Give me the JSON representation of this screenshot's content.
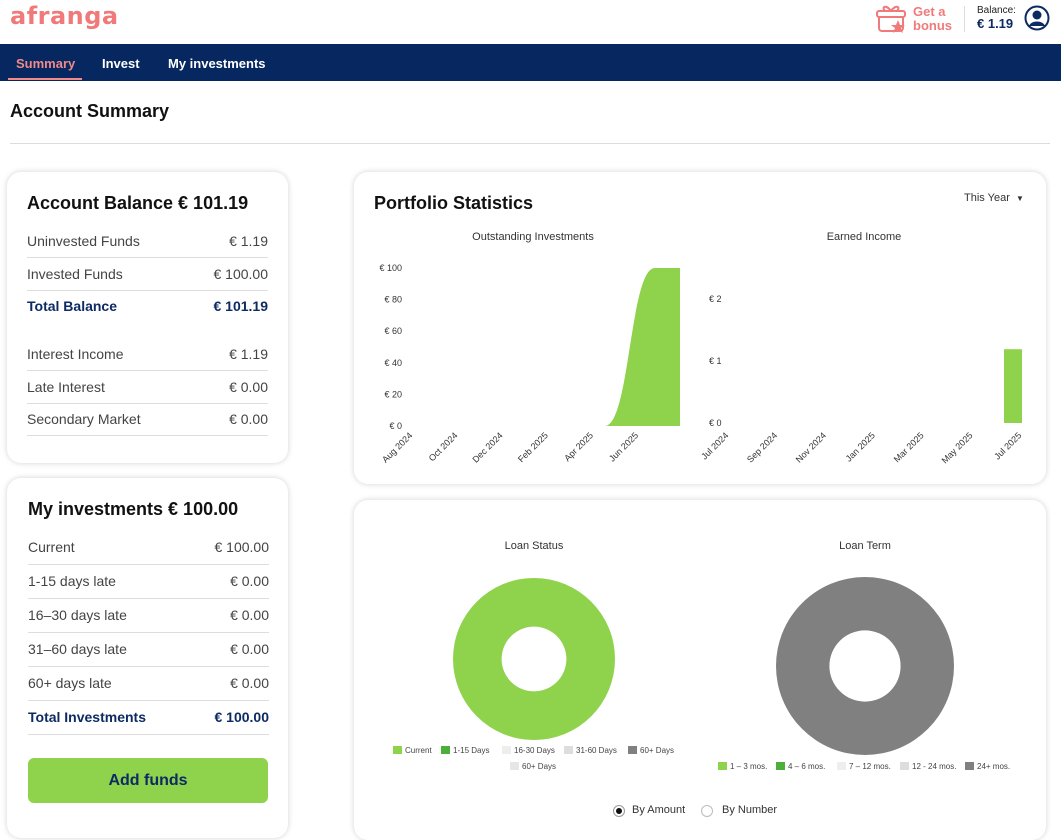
{
  "header": {
    "logo": "afranga",
    "bonus_line1": "Get a",
    "bonus_line2": "bonus",
    "balance_label": "Balance:",
    "balance_value": "€ 1.19"
  },
  "nav": {
    "tabs": [
      {
        "label": "Summary",
        "active": true
      },
      {
        "label": "Invest",
        "active": false
      },
      {
        "label": "My investments",
        "active": false
      }
    ]
  },
  "page": {
    "title": "Account Summary"
  },
  "account_balance": {
    "title": "Account Balance € 101.19",
    "rows": [
      {
        "label": "Uninvested Funds",
        "value": "€ 1.19"
      },
      {
        "label": "Invested Funds",
        "value": "€ 100.00"
      },
      {
        "label": "Total Balance",
        "value": "€ 101.19"
      },
      {
        "label": "Interest Income",
        "value": "€ 1.19"
      },
      {
        "label": "Late Interest",
        "value": "€ 0.00"
      },
      {
        "label": "Secondary Market",
        "value": "€ 0.00"
      }
    ]
  },
  "my_investments": {
    "title": "My investments € 100.00",
    "rows": [
      {
        "label": "Current",
        "value": "€ 100.00"
      },
      {
        "label": "1-15 days late",
        "value": "€ 0.00"
      },
      {
        "label": "16–30 days late",
        "value": "€ 0.00"
      },
      {
        "label": "31–60 days late",
        "value": "€ 0.00"
      },
      {
        "label": "60+ days late",
        "value": "€ 0.00"
      },
      {
        "label": "Total Investments",
        "value": "€ 100.00"
      }
    ],
    "add_funds_label": "Add funds"
  },
  "portfolio": {
    "title": "Portfolio Statistics",
    "period": "This Year",
    "loan_status_title": "Loan Status",
    "loan_term_title": "Loan Term",
    "radio_amount": "By Amount",
    "radio_number": "By Number",
    "radio_selected": "By Amount"
  },
  "chart_data": [
    {
      "type": "area",
      "title": "Outstanding Investments",
      "x": [
        "Aug 2024",
        "Oct 2024",
        "Dec 2024",
        "Feb 2025",
        "Apr 2025",
        "Jun 2025"
      ],
      "y_ticks": [
        "€ 0",
        "€ 20",
        "€ 40",
        "€ 60",
        "€ 80",
        "€ 100"
      ],
      "ylim": [
        0,
        100
      ],
      "series": [
        {
          "values": [
            0,
            0,
            0,
            0,
            0,
            100
          ]
        }
      ],
      "color": "#8fd24c"
    },
    {
      "type": "bar",
      "title": "Earned Income",
      "x": [
        "Jul 2024",
        "Sep 2024",
        "Nov 2024",
        "Jan 2025",
        "Mar 2025",
        "May 2025",
        "Jul 2025"
      ],
      "y_ticks": [
        "€ 0",
        "€ 1",
        "€ 2"
      ],
      "ylim": [
        0,
        2.5
      ],
      "series": [
        {
          "values": [
            0,
            0,
            0,
            0,
            0,
            0,
            1.19
          ]
        }
      ],
      "color": "#8fd24c"
    },
    {
      "type": "pie",
      "title": "Loan Status",
      "labels": [
        "Current",
        "1-15 Days",
        "16-30 Days",
        "31-60 Days",
        "60+ Days",
        "60+ Days"
      ],
      "colors": [
        "#8fd24c",
        "#4caf3a",
        "#eeeeee",
        "#dddddd",
        "#808080",
        "#e6e6e6"
      ],
      "values": [
        100,
        0,
        0,
        0,
        0,
        0
      ]
    },
    {
      "type": "pie",
      "title": "Loan Term",
      "labels": [
        "1 – 3 mos.",
        "4 – 6 mos.",
        "7 – 12 mos.",
        "12 - 24 mos.",
        "24+ mos."
      ],
      "colors": [
        "#8fd24c",
        "#4caf3a",
        "#eeeeee",
        "#dddddd",
        "#808080"
      ],
      "values": [
        0,
        0,
        0,
        0,
        100
      ]
    }
  ]
}
